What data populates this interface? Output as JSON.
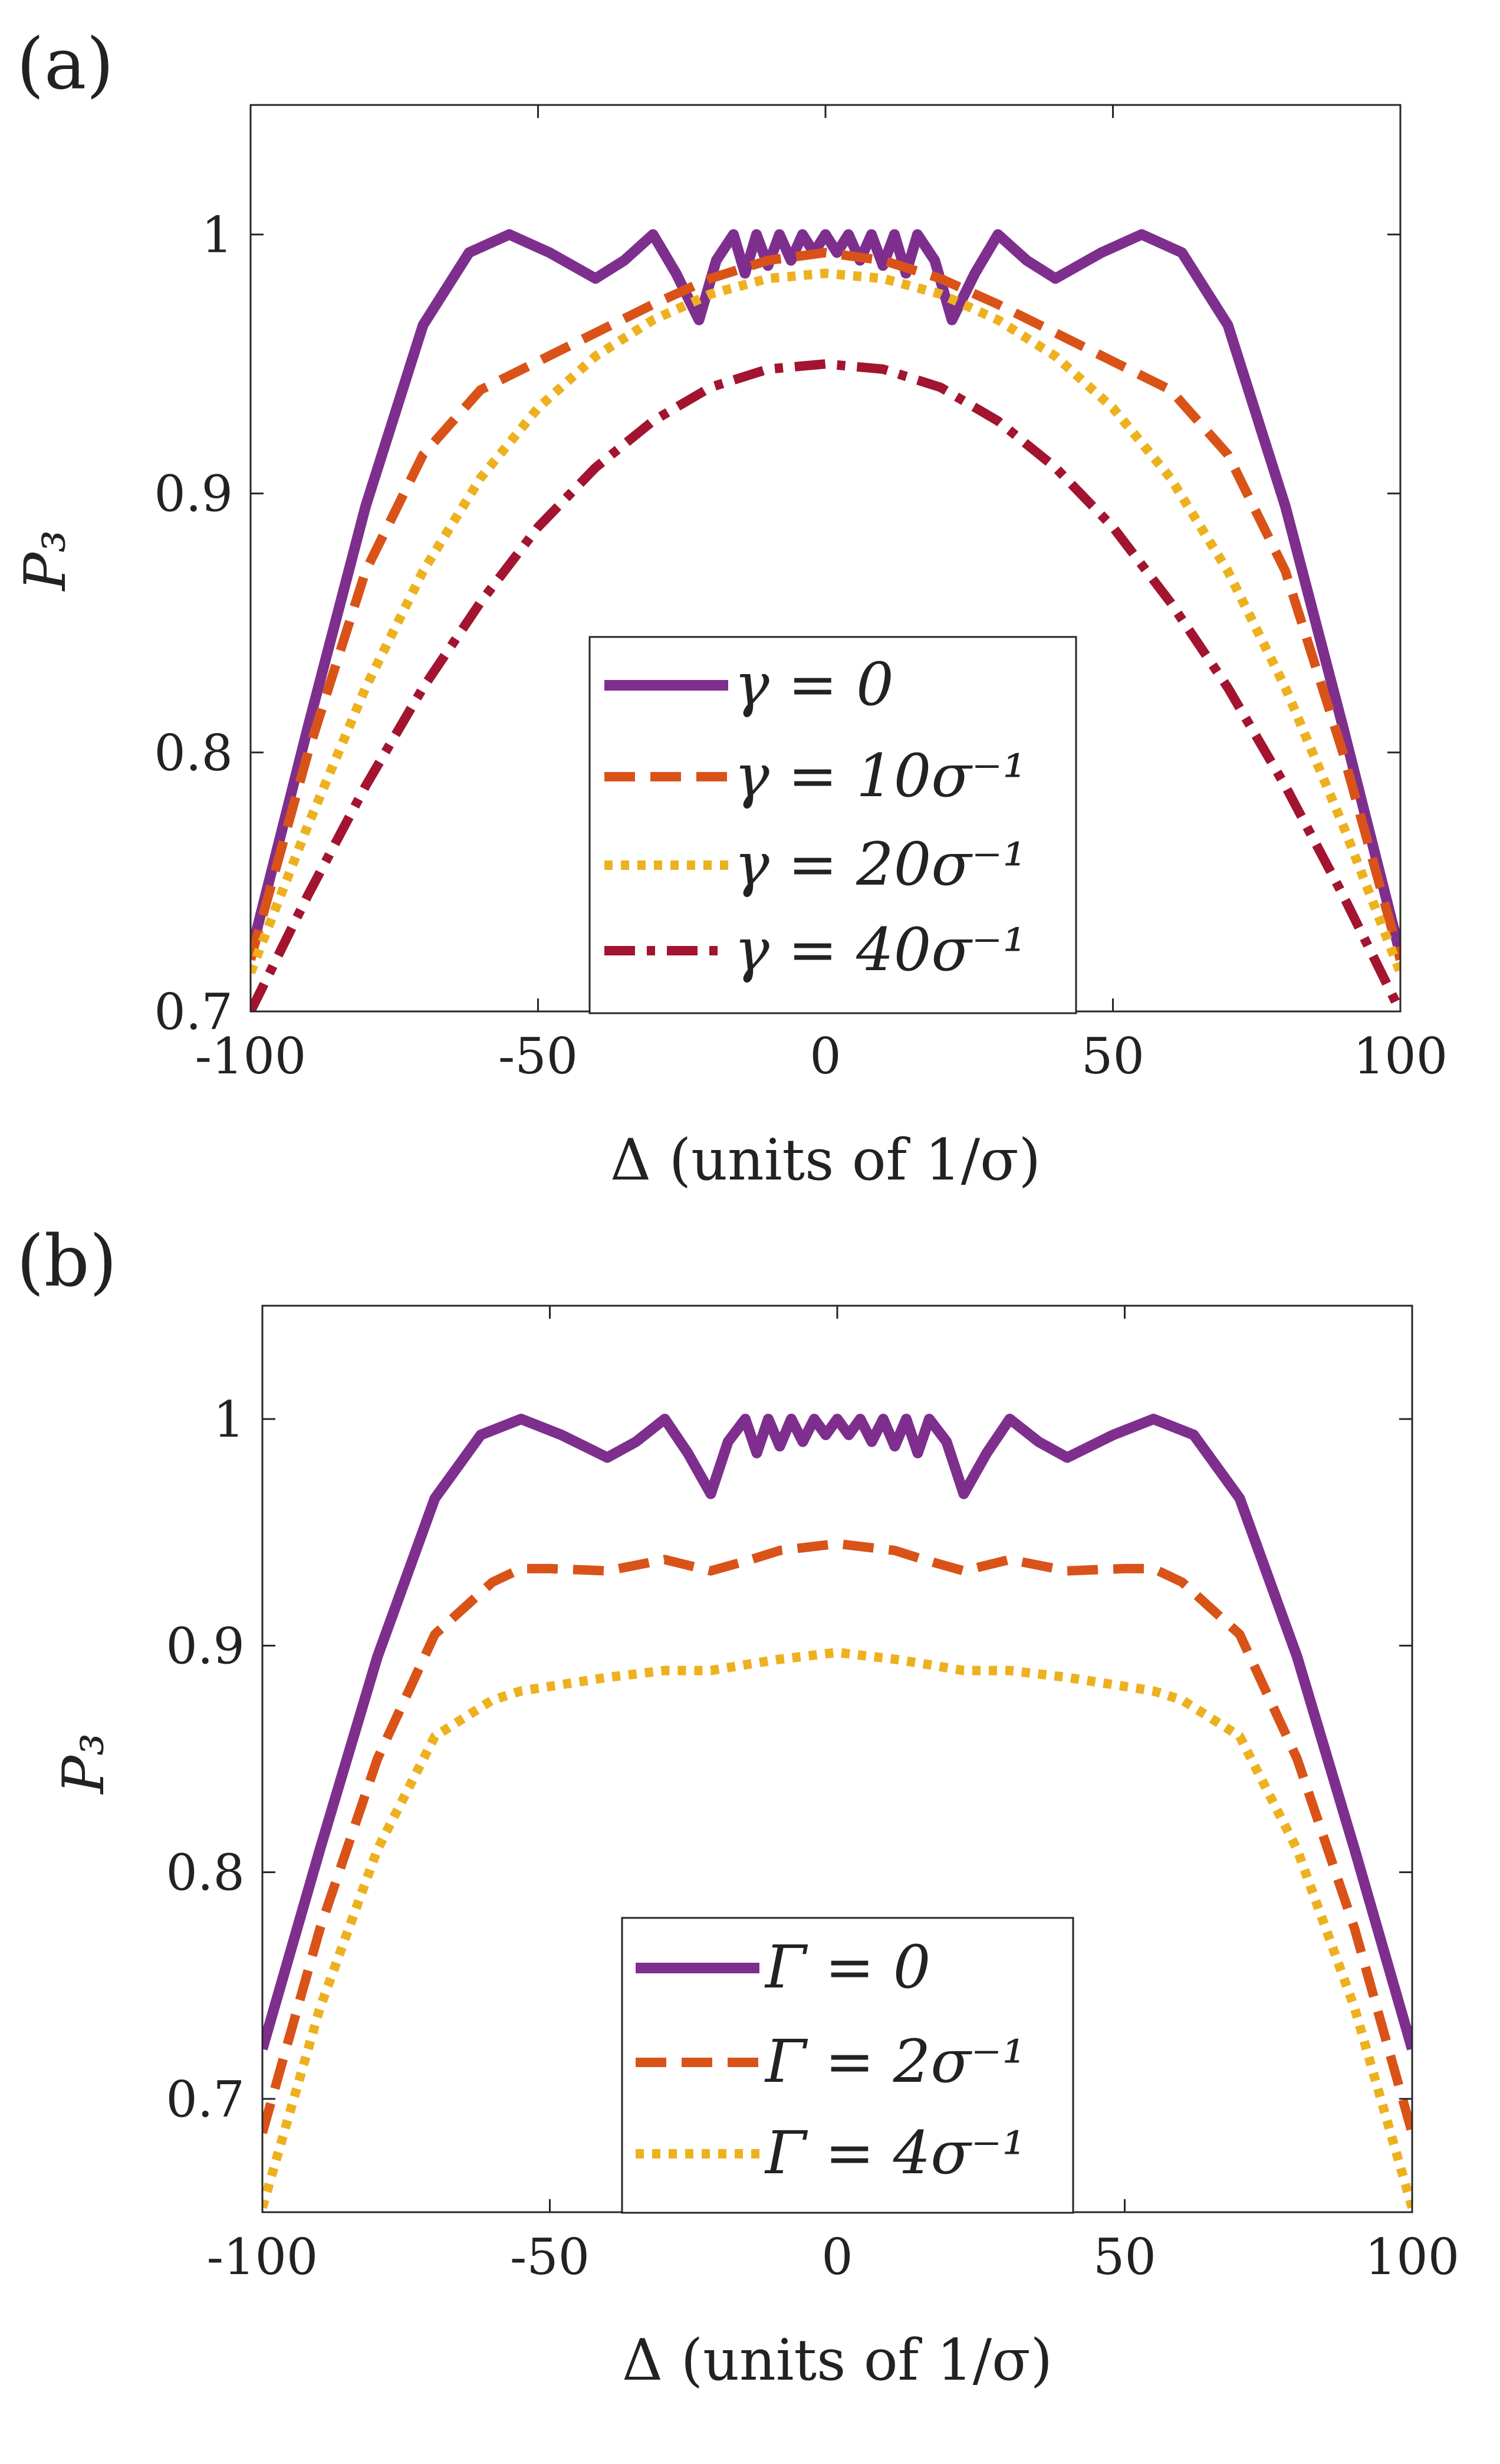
{
  "chart_data": [
    {
      "panel_label": "(a)",
      "type": "line",
      "xlabel": "Δ (units of 1/σ)",
      "ylabel": "P₃",
      "xlim": [
        -100,
        100
      ],
      "ylim": [
        0.7,
        1.05
      ],
      "xticks": [
        -100,
        -50,
        0,
        50,
        100
      ],
      "xtick_labels": [
        "-100",
        "-50",
        "0",
        "50",
        "100"
      ],
      "yticks": [
        0.7,
        0.8,
        0.9,
        1.0
      ],
      "ytick_labels": [
        "0.7",
        "0.8",
        "0.9",
        "1"
      ],
      "grid": false,
      "legend_position": "bottom-center",
      "series": [
        {
          "name": "γ = 0",
          "color": "#7E2F8E",
          "style": "solid",
          "x": [
            -100,
            -90,
            -80,
            -70,
            -62,
            -55,
            -48,
            -40,
            -35,
            -30,
            -26,
            -22,
            -19,
            -16,
            -14,
            -12,
            -10,
            -8,
            -6,
            -4,
            -2,
            0,
            2,
            4,
            6,
            8,
            10,
            12,
            14,
            16,
            19,
            22,
            26,
            30,
            35,
            40,
            48,
            55,
            62,
            70,
            80,
            90,
            100
          ],
          "y": [
            0.722,
            0.81,
            0.895,
            0.965,
            0.993,
            1.0,
            0.993,
            0.983,
            0.99,
            1.0,
            0.985,
            0.967,
            0.99,
            1.0,
            0.985,
            1.0,
            0.988,
            1.0,
            0.99,
            1.0,
            0.993,
            1.0,
            0.993,
            1.0,
            0.99,
            1.0,
            0.988,
            1.0,
            0.985,
            1.0,
            0.99,
            0.967,
            0.985,
            1.0,
            0.99,
            0.983,
            0.993,
            1.0,
            0.993,
            0.965,
            0.895,
            0.81,
            0.722
          ]
        },
        {
          "name": "γ = 10σ⁻¹",
          "color": "#D95319",
          "style": "dashed",
          "x": [
            -100,
            -90,
            -80,
            -70,
            -60,
            -50,
            -40,
            -30,
            -20,
            -10,
            0,
            10,
            20,
            30,
            40,
            50,
            60,
            70,
            80,
            90,
            100
          ],
          "y": [
            0.72,
            0.8,
            0.87,
            0.915,
            0.94,
            0.951,
            0.962,
            0.973,
            0.983,
            0.99,
            0.993,
            0.99,
            0.983,
            0.973,
            0.962,
            0.951,
            0.94,
            0.915,
            0.87,
            0.8,
            0.72
          ]
        },
        {
          "name": "γ = 20σ⁻¹",
          "color": "#EDB120",
          "style": "dotted",
          "x": [
            -100,
            -90,
            -80,
            -70,
            -60,
            -50,
            -40,
            -30,
            -20,
            -10,
            0,
            10,
            20,
            30,
            40,
            50,
            60,
            70,
            80,
            90,
            100
          ],
          "y": [
            0.715,
            0.772,
            0.825,
            0.87,
            0.906,
            0.933,
            0.953,
            0.967,
            0.977,
            0.983,
            0.985,
            0.983,
            0.977,
            0.967,
            0.953,
            0.933,
            0.906,
            0.87,
            0.825,
            0.772,
            0.715
          ]
        },
        {
          "name": "γ = 40σ⁻¹",
          "color": "#A2142F",
          "style": "dashdot",
          "x": [
            -100,
            -90,
            -80,
            -70,
            -60,
            -50,
            -40,
            -30,
            -20,
            -10,
            0,
            10,
            20,
            30,
            40,
            50,
            60,
            70,
            80,
            90,
            100
          ],
          "y": [
            0.7,
            0.745,
            0.787,
            0.825,
            0.858,
            0.887,
            0.91,
            0.928,
            0.941,
            0.948,
            0.95,
            0.948,
            0.941,
            0.928,
            0.91,
            0.887,
            0.858,
            0.825,
            0.787,
            0.745,
            0.7
          ]
        }
      ]
    },
    {
      "panel_label": "(b)",
      "type": "line",
      "xlabel": "Δ (units of 1/σ)",
      "ylabel": "P₃",
      "xlim": [
        -100,
        100
      ],
      "ylim": [
        0.65,
        1.05
      ],
      "xticks": [
        -100,
        -50,
        0,
        50,
        100
      ],
      "xtick_labels": [
        "-100",
        "-50",
        "0",
        "50",
        "100"
      ],
      "yticks": [
        0.7,
        0.8,
        0.9,
        1.0
      ],
      "ytick_labels": [
        "0.7",
        "0.8",
        "0.9",
        "1"
      ],
      "grid": false,
      "legend_position": "bottom-center",
      "series": [
        {
          "name": "Γ = 0",
          "color": "#7E2F8E",
          "style": "solid",
          "x": [
            -100,
            -90,
            -80,
            -70,
            -62,
            -55,
            -48,
            -40,
            -35,
            -30,
            -26,
            -22,
            -19,
            -16,
            -14,
            -12,
            -10,
            -8,
            -6,
            -4,
            -2,
            0,
            2,
            4,
            6,
            8,
            10,
            12,
            14,
            16,
            19,
            22,
            26,
            30,
            35,
            40,
            48,
            55,
            62,
            70,
            80,
            90,
            100
          ],
          "y": [
            0.722,
            0.81,
            0.895,
            0.965,
            0.993,
            1.0,
            0.993,
            0.983,
            0.99,
            1.0,
            0.985,
            0.967,
            0.99,
            1.0,
            0.985,
            1.0,
            0.988,
            1.0,
            0.99,
            1.0,
            0.993,
            1.0,
            0.993,
            1.0,
            0.99,
            1.0,
            0.988,
            1.0,
            0.985,
            1.0,
            0.99,
            0.967,
            0.985,
            1.0,
            0.99,
            0.983,
            0.993,
            1.0,
            0.993,
            0.965,
            0.895,
            0.81,
            0.722
          ]
        },
        {
          "name": "Γ = 2σ⁻¹",
          "color": "#D95319",
          "style": "dashed",
          "x": [
            -100,
            -90,
            -80,
            -70,
            -60,
            -55,
            -50,
            -40,
            -30,
            -22,
            -15,
            -10,
            0,
            10,
            15,
            22,
            30,
            40,
            50,
            55,
            60,
            70,
            80,
            90,
            100
          ],
          "y": [
            0.685,
            0.775,
            0.85,
            0.905,
            0.928,
            0.934,
            0.934,
            0.933,
            0.938,
            0.933,
            0.938,
            0.942,
            0.945,
            0.942,
            0.938,
            0.933,
            0.938,
            0.933,
            0.934,
            0.934,
            0.928,
            0.905,
            0.85,
            0.775,
            0.685
          ]
        },
        {
          "name": "Γ = 4σ⁻¹",
          "color": "#EDB120",
          "style": "dotted",
          "x": [
            -100,
            -90,
            -80,
            -70,
            -60,
            -55,
            -50,
            -40,
            -30,
            -22,
            -15,
            -10,
            0,
            10,
            15,
            22,
            30,
            40,
            50,
            55,
            60,
            70,
            80,
            90,
            100
          ],
          "y": [
            0.652,
            0.74,
            0.81,
            0.86,
            0.876,
            0.88,
            0.882,
            0.886,
            0.889,
            0.889,
            0.892,
            0.894,
            0.897,
            0.894,
            0.892,
            0.889,
            0.889,
            0.886,
            0.882,
            0.88,
            0.876,
            0.86,
            0.81,
            0.74,
            0.652
          ]
        }
      ]
    }
  ]
}
